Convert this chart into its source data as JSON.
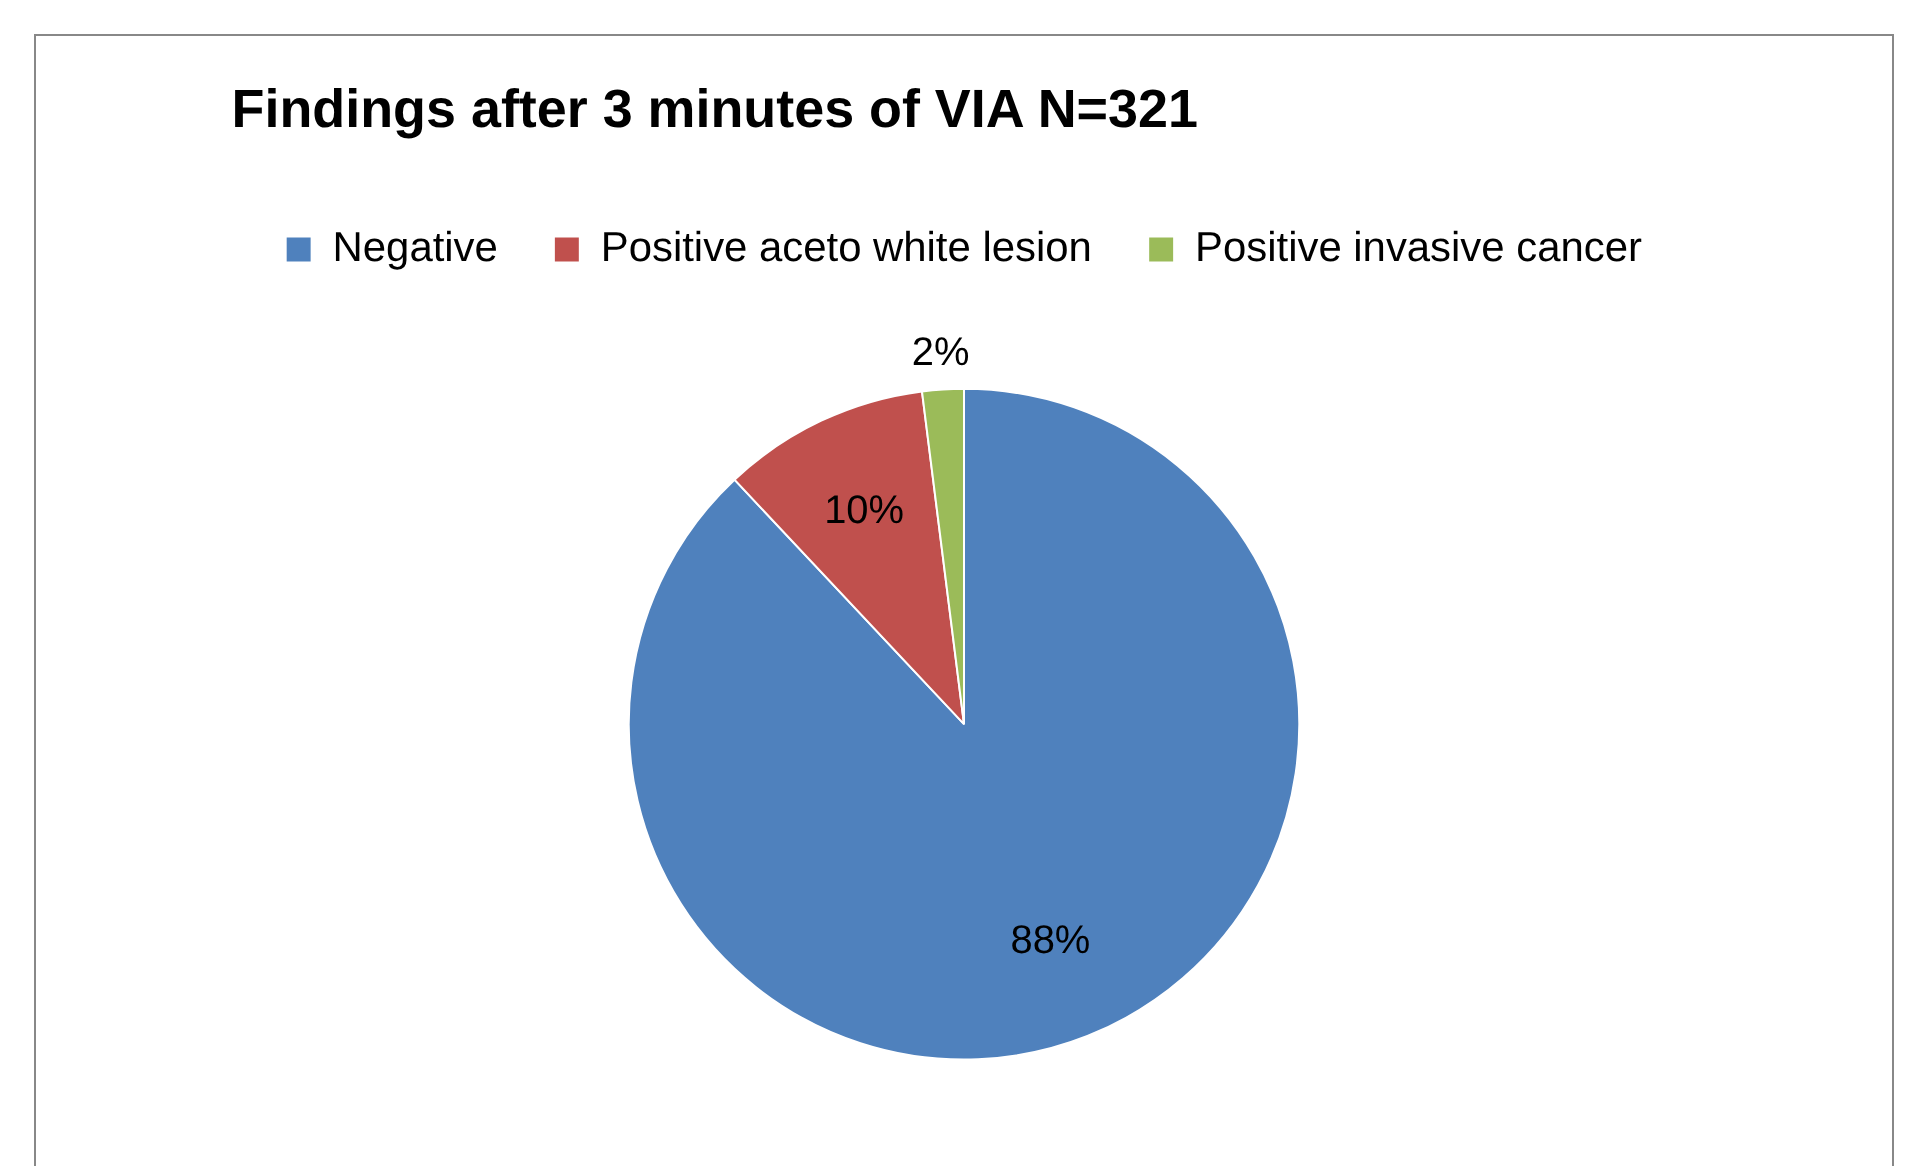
{
  "chart_data": {
    "type": "pie",
    "title": "Findings after 3 minutes of VIA N=321",
    "categories": [
      "Negative",
      "Positive aceto white lesion",
      "Positive invasive cancer"
    ],
    "values": [
      88,
      10,
      2
    ],
    "colors": [
      "#4f81bd",
      "#c0504d",
      "#9bbb59"
    ],
    "value_labels": [
      "88%",
      "10%",
      "2%"
    ],
    "legend": "top"
  }
}
